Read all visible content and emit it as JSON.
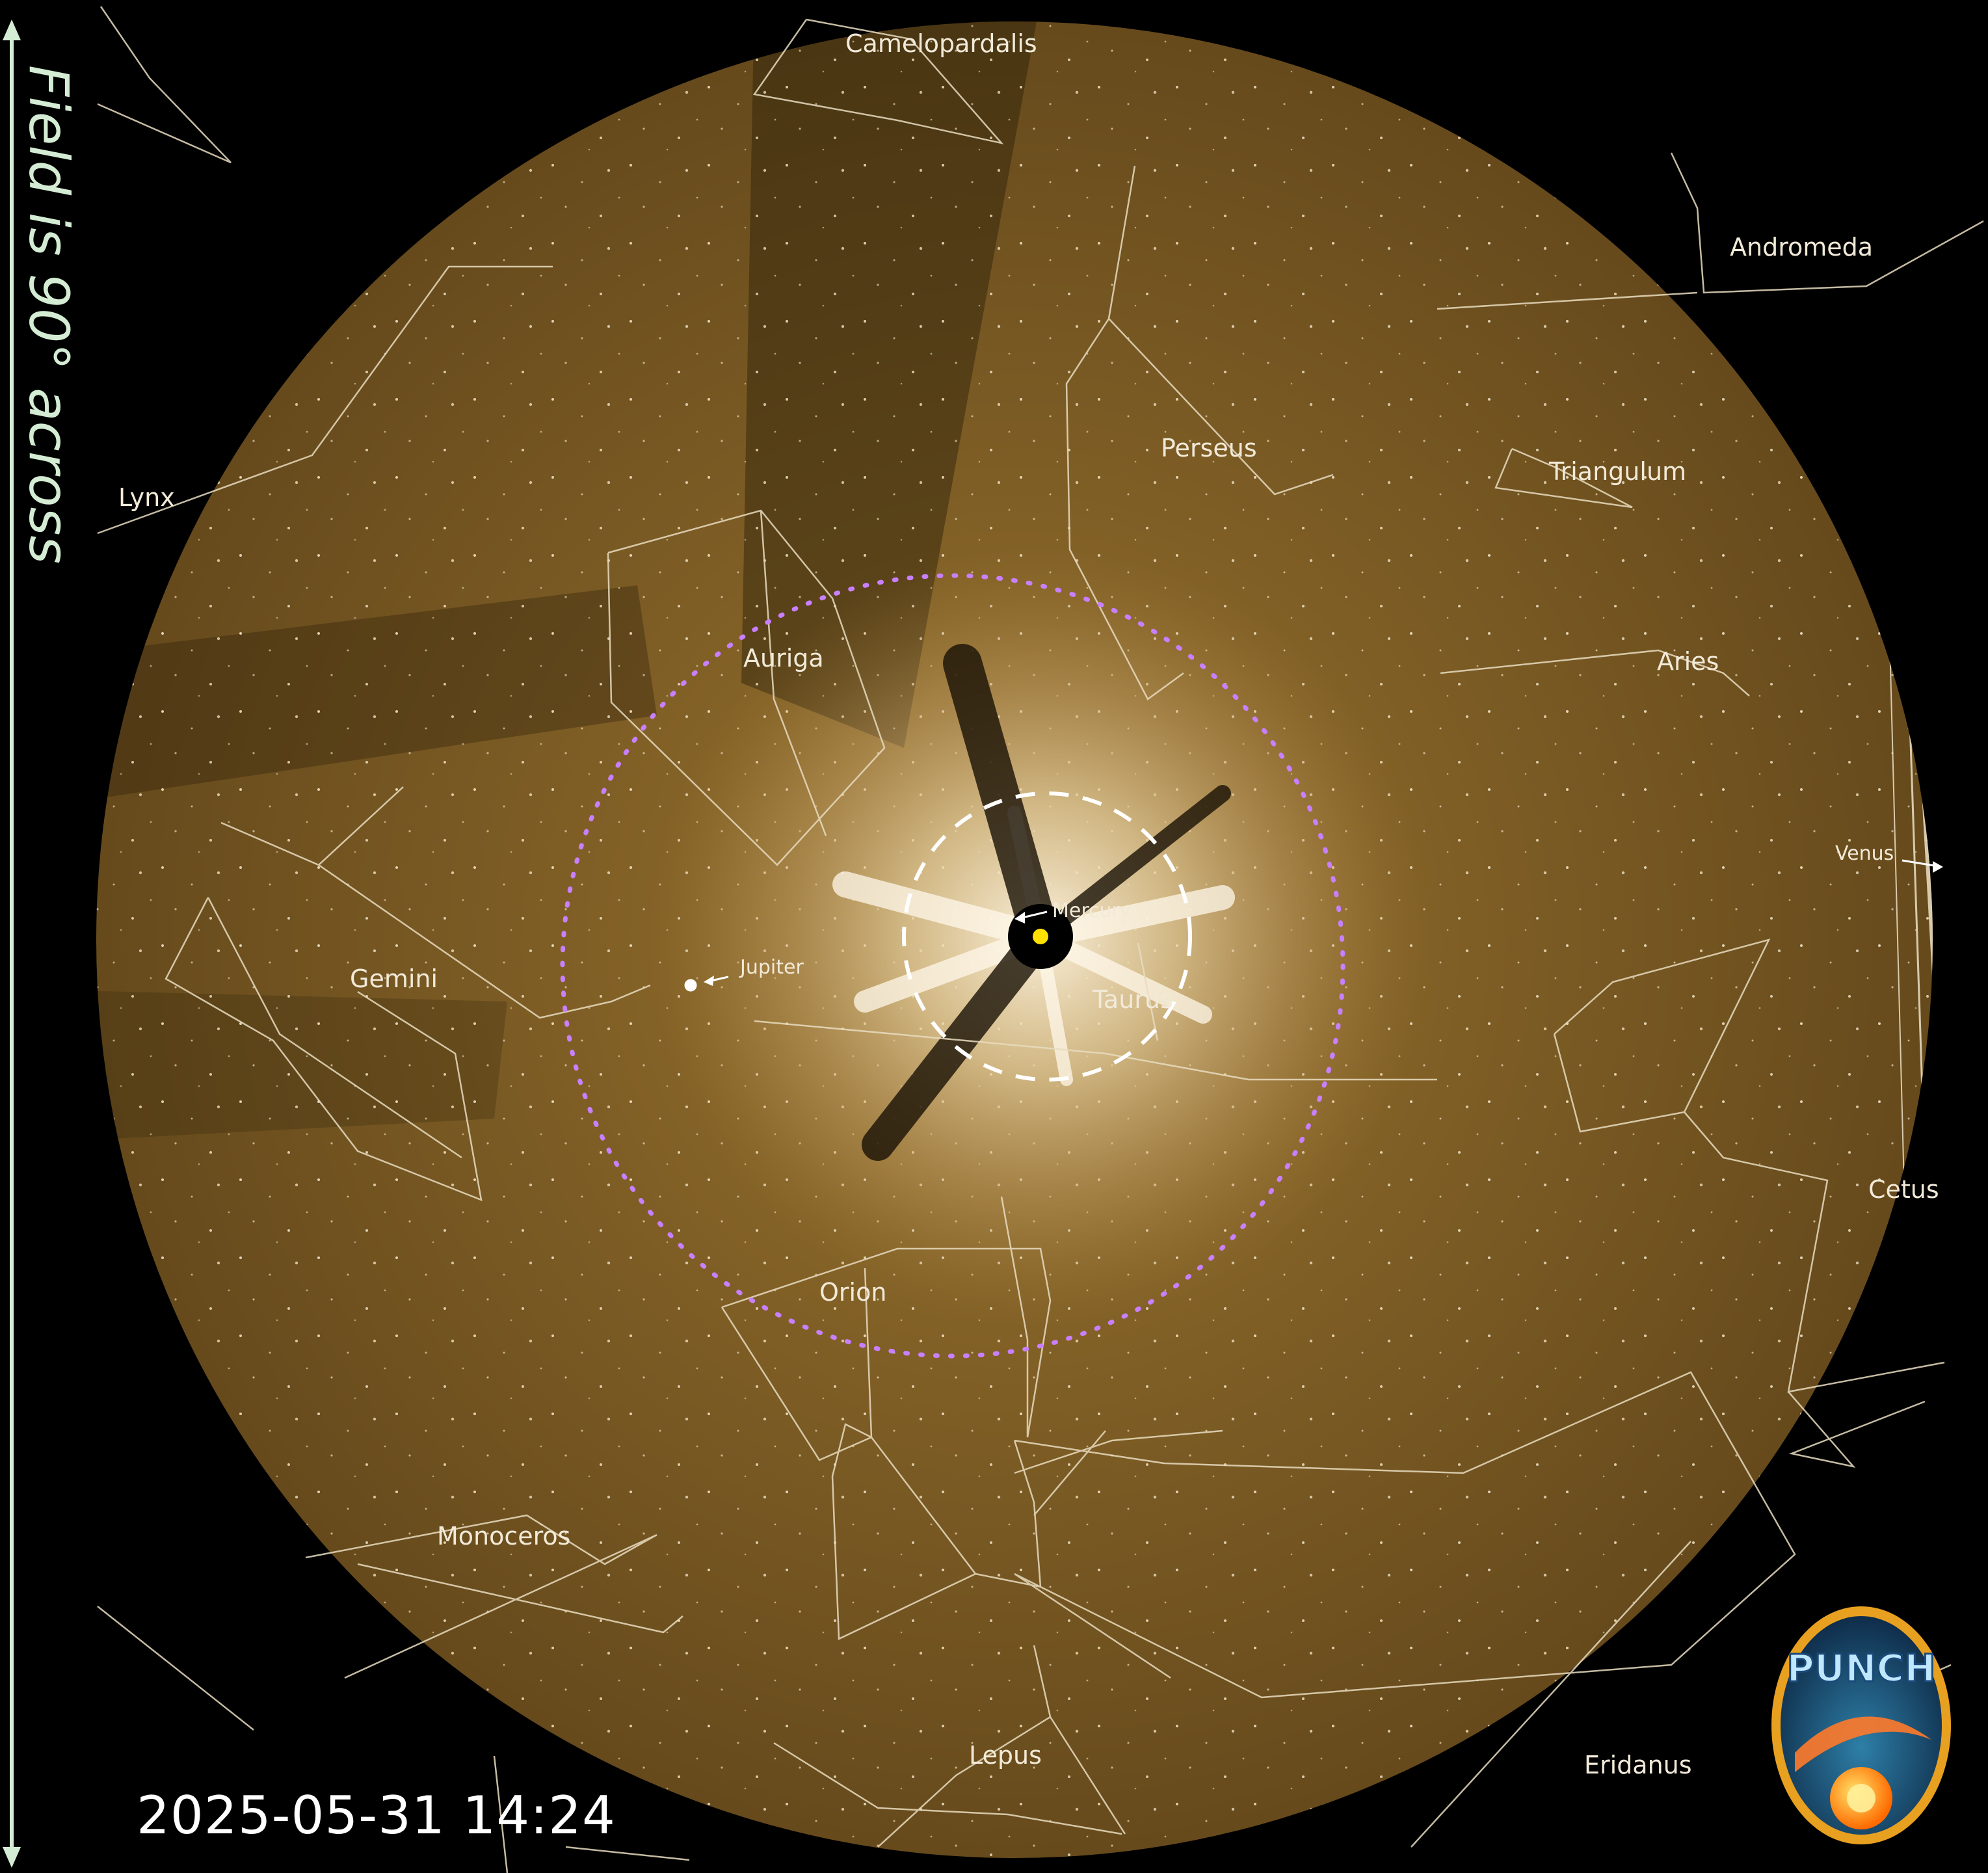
{
  "image": {
    "instrument_badge": "PUNCH",
    "timestamp": "2025-05-31 14:24",
    "field_note": "Field is 90° across",
    "colors": {
      "sky": "#7a5a22",
      "background": "#000000",
      "constellation_lines": "#e8dcc0",
      "fov_circle": "#c880ff",
      "sun_marker": "#ffe000"
    }
  },
  "constellations": {
    "camelopardalis": "Camelopardalis",
    "andromeda": "Andromeda",
    "perseus": "Perseus",
    "triangulum": "Triangulum",
    "lynx": "Lynx",
    "auriga": "Auriga",
    "aries": "Aries",
    "gemini": "Gemini",
    "taurus": "Taurus",
    "cetus": "Cetus",
    "orion": "Orion",
    "monoceros": "Monoceros",
    "lepus": "Lepus",
    "eridanus": "Eridanus"
  },
  "planets": {
    "mercury": "Mercury",
    "jupiter": "Jupiter",
    "venus": "Venus"
  },
  "icons": {
    "sun": "sun-icon",
    "logo": "punch-logo-icon",
    "arrow": "double-arrow-icon"
  }
}
